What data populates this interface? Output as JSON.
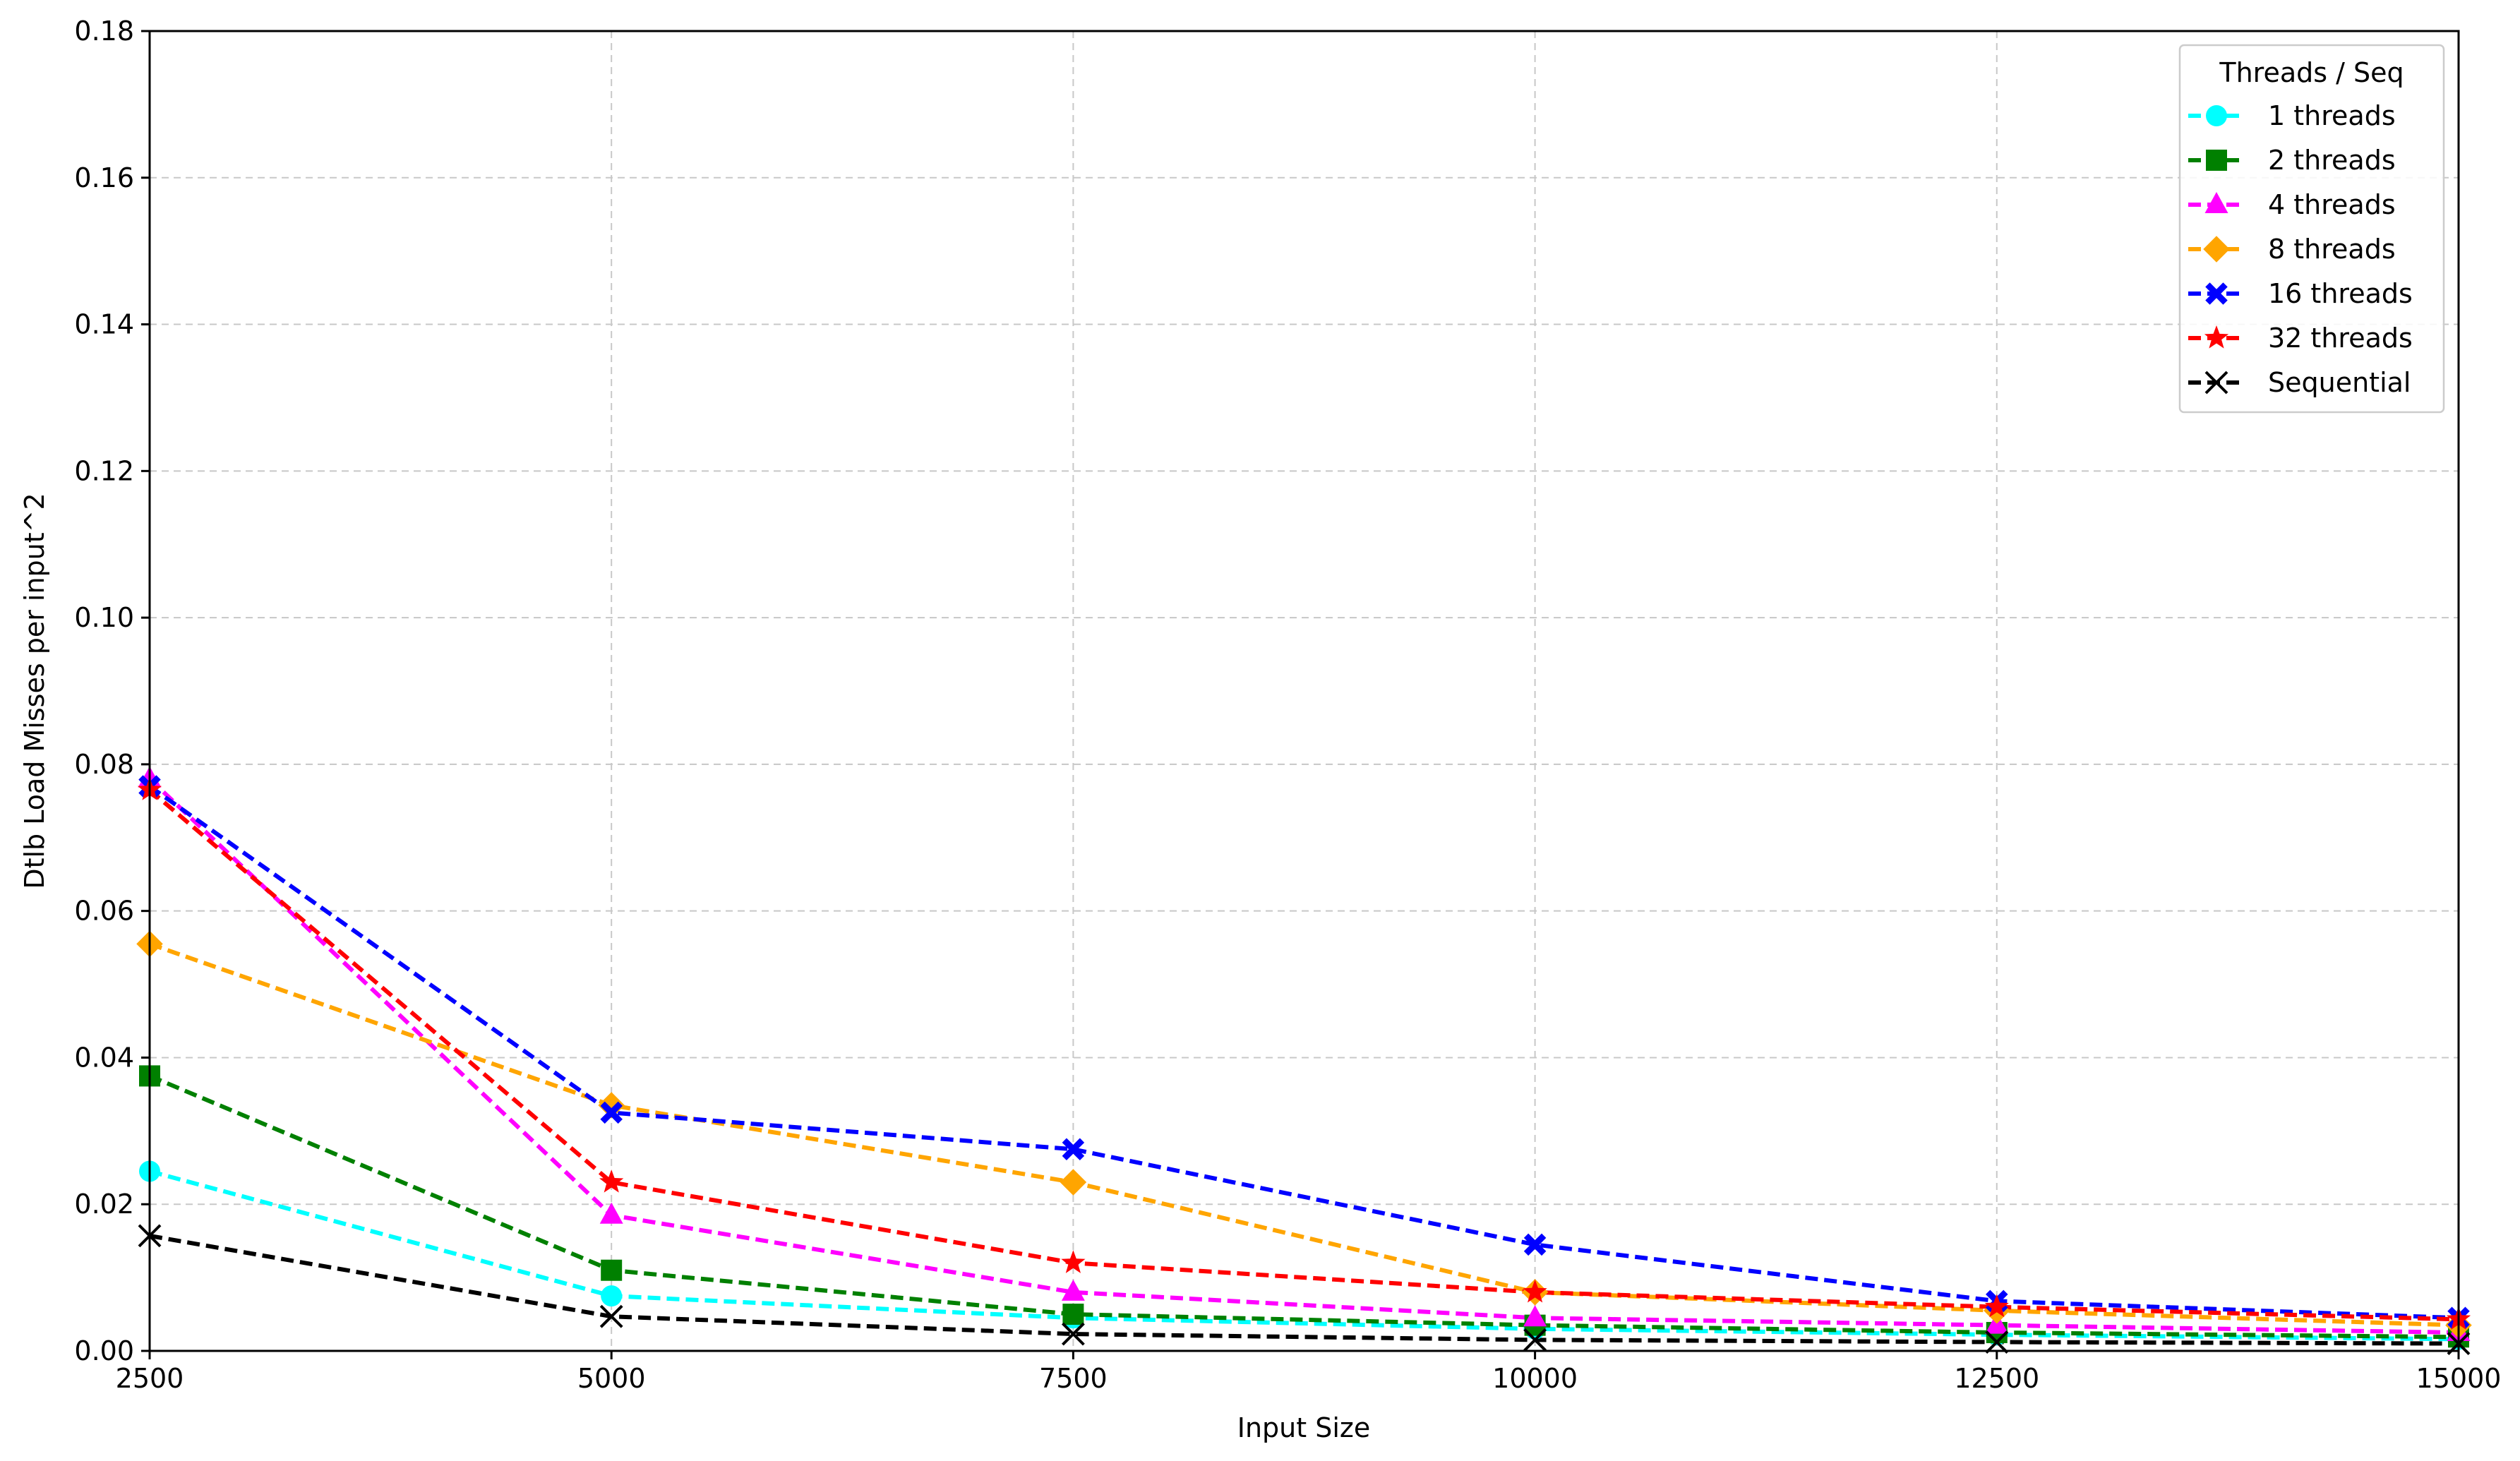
{
  "chart_data": {
    "type": "line",
    "title": "",
    "xlabel": "Input Size",
    "ylabel": "Dtlb Load Misses per input^2",
    "x": [
      2500,
      5000,
      7500,
      10000,
      12500,
      15000
    ],
    "xlim": [
      2500,
      15000
    ],
    "ylim": [
      0,
      0.18
    ],
    "xticks": [
      "2500",
      "5000",
      "7500",
      "10000",
      "12500",
      "15000"
    ],
    "yticks": [
      "0.00",
      "0.02",
      "0.04",
      "0.06",
      "0.08",
      "0.10",
      "0.12",
      "0.14",
      "0.16",
      "0.18"
    ],
    "grid": true,
    "legend": {
      "title": "Threads / Seq",
      "placement": "top-right"
    },
    "series": [
      {
        "name": "1 threads",
        "color": "#00ffff",
        "marker": "circle",
        "values": [
          0.0245,
          0.0075,
          0.0045,
          0.003,
          0.0022,
          0.0016
        ]
      },
      {
        "name": "2 threads",
        "color": "#008000",
        "marker": "square",
        "values": [
          0.0375,
          0.011,
          0.005,
          0.0035,
          0.0025,
          0.0019
        ]
      },
      {
        "name": "4 threads",
        "color": "#ff00ff",
        "marker": "triangle",
        "values": [
          0.078,
          0.0185,
          0.008,
          0.0045,
          0.0035,
          0.0025
        ]
      },
      {
        "name": "8 threads",
        "color": "#ffa500",
        "marker": "diamond",
        "values": [
          0.0555,
          0.0335,
          0.023,
          0.008,
          0.0055,
          0.0035
        ]
      },
      {
        "name": "16 threads",
        "color": "#0000ff",
        "marker": "x-filled",
        "values": [
          0.077,
          0.0325,
          0.0275,
          0.0145,
          0.0068,
          0.0045
        ]
      },
      {
        "name": "32 threads",
        "color": "#ff0000",
        "marker": "star",
        "values": [
          0.0765,
          0.023,
          0.012,
          0.008,
          0.006,
          0.0043
        ]
      },
      {
        "name": "Sequential",
        "color": "#000000",
        "marker": "x",
        "values": [
          0.0157,
          0.0047,
          0.0023,
          0.0015,
          0.0012,
          0.001
        ]
      }
    ]
  }
}
